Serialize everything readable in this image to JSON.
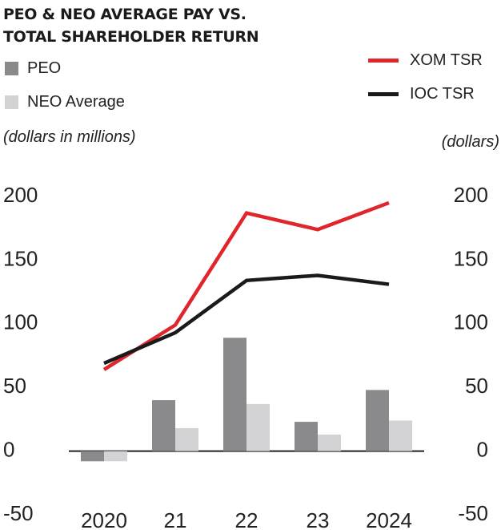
{
  "chart_data": {
    "type": "bar",
    "title_lines": [
      "PEO & NEO AVERAGE PAY VS.",
      "TOTAL SHAREHOLDER RETURN"
    ],
    "categories": [
      "2020",
      "21",
      "22",
      "23",
      "2024"
    ],
    "left_axis_label": "(dollars in millions)",
    "right_axis_label": "(dollars)",
    "ylim": [
      -50,
      200
    ],
    "yticks": [
      200,
      150,
      100,
      50,
      0,
      -50
    ],
    "bar_series": [
      {
        "name": "PEO",
        "color": "#8a8a8c",
        "values": [
          -8,
          40,
          89,
          23,
          48
        ]
      },
      {
        "name": "NEO Average",
        "color": "#d3d3d5",
        "values": [
          -8,
          18,
          37,
          13,
          24
        ]
      }
    ],
    "line_series": [
      {
        "name": "XOM TSR",
        "color": "#e0262b",
        "values": [
          64,
          99,
          187,
          174,
          195
        ]
      },
      {
        "name": "IOC TSR",
        "color": "#1a1a1a",
        "values": [
          69,
          93,
          134,
          138,
          131
        ]
      }
    ],
    "grid": false
  }
}
